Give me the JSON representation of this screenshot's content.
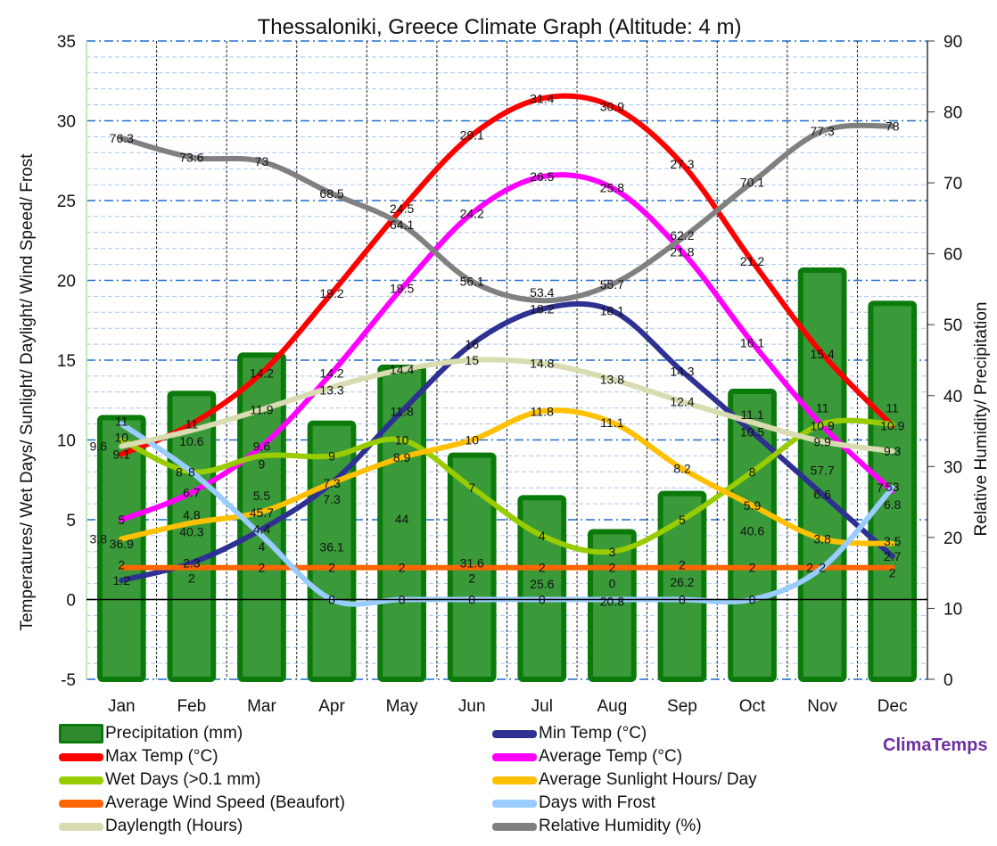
{
  "chart_data": {
    "type": "bar+line",
    "title": "Thessaloniki, Greece Climate Graph (Altitude: 4 m)",
    "ylabel": "Temperatures/ Wet Days/ Sunlight/ Daylight/ Wind Speed/ Frost",
    "y2label": "Relative Humidity/ Precipitation",
    "ylim": [
      -5,
      35
    ],
    "y2lim": [
      0,
      90
    ],
    "yticks": [
      -5,
      0,
      5,
      10,
      15,
      20,
      25,
      30,
      35
    ],
    "y2ticks": [
      0,
      10,
      20,
      30,
      40,
      50,
      60,
      70,
      80,
      90
    ],
    "categories": [
      "Jan",
      "Feb",
      "Mar",
      "Apr",
      "May",
      "Jun",
      "Jul",
      "Aug",
      "Sep",
      "Oct",
      "Nov",
      "Dec"
    ],
    "grid": true,
    "legend_placement": "bottom",
    "series": [
      {
        "name": "Precipitation (mm)",
        "type": "bar",
        "axis": "right",
        "color": "#2e8b2e",
        "values": [
          36.9,
          40.3,
          45.7,
          36.1,
          44.0,
          31.6,
          25.6,
          20.8,
          26.2,
          40.6,
          57.7,
          53.0
        ]
      },
      {
        "name": "Min Temp (°C)",
        "type": "line",
        "axis": "left",
        "color": "#2e3192",
        "values": [
          1.2,
          2.3,
          4.4,
          7.3,
          11.8,
          16,
          18.2,
          18.1,
          14.3,
          10.5,
          6.6,
          2.7
        ]
      },
      {
        "name": "Max Temp (°C)",
        "type": "line",
        "axis": "left",
        "color": "#ff0000",
        "values": [
          9.1,
          11,
          14.2,
          19.2,
          24.5,
          29.1,
          31.4,
          30.9,
          27.3,
          21.2,
          15.4,
          10.9
        ]
      },
      {
        "name": "Average Temp (°C)",
        "type": "line",
        "axis": "left",
        "color": "#ff00ff",
        "values": [
          5,
          6.7,
          9.6,
          14.2,
          19.5,
          24.2,
          26.5,
          25.8,
          21.8,
          16.1,
          10.9,
          6.8
        ]
      },
      {
        "name": "Wet Days (>0.1 mm)",
        "type": "line",
        "axis": "left",
        "color": "#99cc00",
        "values": [
          10,
          8,
          9,
          9,
          10,
          7,
          4,
          3,
          5,
          8,
          11,
          11
        ]
      },
      {
        "name": "Average Sunlight Hours/ Day",
        "type": "line",
        "axis": "left",
        "color": "#ffc000",
        "values": [
          3.8,
          4.8,
          5.5,
          7.3,
          8.9,
          10.0,
          11.8,
          11.1,
          8.2,
          5.9,
          3.8,
          3.5
        ]
      },
      {
        "name": "Average Wind Speed (Beaufort)",
        "type": "line",
        "axis": "left",
        "color": "#ff6600",
        "values": [
          2,
          2,
          2,
          2,
          2,
          2,
          2,
          2,
          2,
          2,
          2,
          2
        ]
      },
      {
        "name": "Days with Frost",
        "type": "line",
        "axis": "left",
        "color": "#99ccff",
        "values": [
          11,
          8,
          4,
          0,
          0,
          0,
          0,
          0,
          0,
          0,
          2,
          7
        ]
      },
      {
        "name": "Daylength (Hours)",
        "type": "line",
        "axis": "left",
        "color": "#d8dcb0",
        "values": [
          9.6,
          10.6,
          11.9,
          13.3,
          14.4,
          15.0,
          14.8,
          13.8,
          12.4,
          11.1,
          9.9,
          9.3
        ]
      },
      {
        "name": "Relative Humidity (%)",
        "type": "line",
        "axis": "right",
        "color": "#808080",
        "values": [
          76.3,
          73.6,
          73,
          68.5,
          64.1,
          56.1,
          53.4,
          55.7,
          62.2,
          70.1,
          77.3,
          78
        ]
      }
    ]
  },
  "brand": "ClimaTemps"
}
